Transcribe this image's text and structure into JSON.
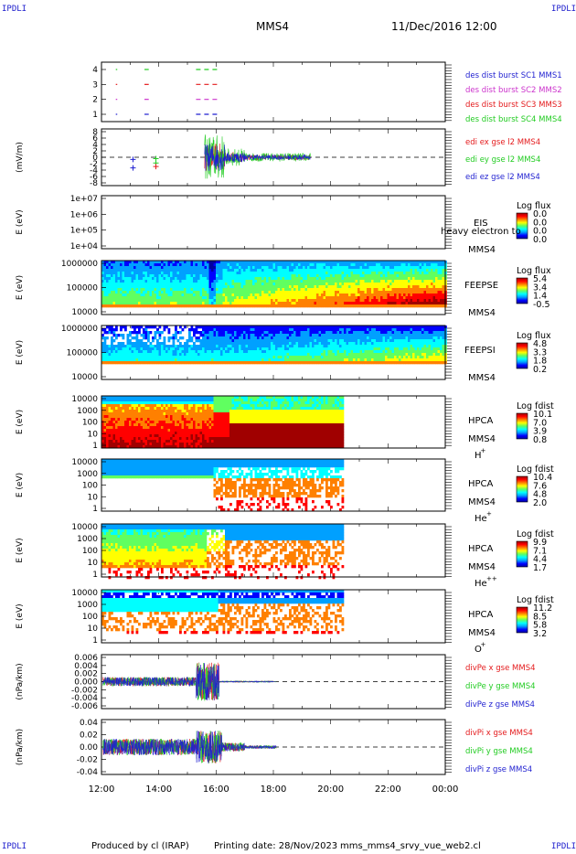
{
  "header": {
    "corner_label": "IPDLI",
    "spacecraft": "MMS4",
    "datetime": "11/Dec/2016 12:00"
  },
  "footer": {
    "produced_by": "Produced by cl (IRAP)",
    "printing_date": "Printing date: 28/Nov/2023",
    "script_name": "mms_mms4_srvy_vue_web2.cl"
  },
  "colors": {
    "red": "#e41a1c",
    "green": "#22cc22",
    "blue": "#1f1fd0",
    "magenta": "#cc33cc",
    "colorbar": [
      "#0000a0",
      "#0000ff",
      "#00a0ff",
      "#00ffff",
      "#60ff60",
      "#ffff00",
      "#ff8000",
      "#ff0000",
      "#a00000"
    ]
  },
  "chart_data": [
    {
      "type": "scatter",
      "ylabel": "",
      "yticks": [
        "1",
        "2",
        "3",
        "4"
      ],
      "legend": [
        {
          "label": "des dist burst SC1 MMS1",
          "color": "#1f1fd0"
        },
        {
          "label": "des dist burst SC2 MMS2",
          "color": "#cc33cc"
        },
        {
          "label": "des dist burst SC3 MMS3",
          "color": "#e41a1c"
        },
        {
          "label": "des dist burst SC4 MMS4",
          "color": "#22cc22"
        }
      ],
      "segments": [
        {
          "sc": 4,
          "start": 12.5,
          "end": 12.55
        },
        {
          "sc": 4,
          "start": 13.5,
          "end": 13.65
        },
        {
          "sc": 4,
          "start": 15.3,
          "end": 16.1
        },
        {
          "sc": 3,
          "start": 12.5,
          "end": 12.55
        },
        {
          "sc": 3,
          "start": 13.5,
          "end": 13.65
        },
        {
          "sc": 3,
          "start": 15.3,
          "end": 16.1
        },
        {
          "sc": 2,
          "start": 12.5,
          "end": 12.55
        },
        {
          "sc": 2,
          "start": 13.5,
          "end": 13.65
        },
        {
          "sc": 2,
          "start": 15.3,
          "end": 16.1
        },
        {
          "sc": 1,
          "start": 12.5,
          "end": 12.55
        },
        {
          "sc": 1,
          "start": 13.5,
          "end": 13.65
        },
        {
          "sc": 1,
          "start": 15.3,
          "end": 16.1
        }
      ]
    },
    {
      "type": "line",
      "ylabel": "(mV/m)",
      "yticks": [
        "8",
        "6",
        "4",
        "2",
        "0",
        "-2",
        "-4",
        "-6",
        "-8"
      ],
      "ylim": [
        -8,
        8
      ],
      "legend": [
        {
          "label": "edi ex gse l2 MMS4",
          "color": "#e41a1c"
        },
        {
          "label": "edi ey gse l2 MMS4",
          "color": "#22cc22"
        },
        {
          "label": "edi ez gse l2 MMS4",
          "color": "#1f1fd0"
        }
      ]
    },
    {
      "type": "heatmap",
      "ylabel": "E (eV)",
      "yticks": [
        "1e+07",
        "1e+06",
        "1e+05",
        "1e+04"
      ],
      "instrument": "EIS",
      "sc_label": "MMS4",
      "overlay_text": "heavy electron to",
      "colorbar_title": "Log flux",
      "colorbar_ticks": [
        "0.0",
        "0.0",
        "0.0",
        "0.0"
      ]
    },
    {
      "type": "heatmap",
      "ylabel": "E (eV)",
      "yticks": [
        "1000000",
        "100000",
        "10000"
      ],
      "instrument": "FEEPSE",
      "sc_label": "MMS4",
      "colorbar_title": "Log flux",
      "colorbar_ticks": [
        "5.4",
        "3.4",
        "1.4",
        "-0.5"
      ]
    },
    {
      "type": "heatmap",
      "ylabel": "E (eV)",
      "yticks": [
        "1000000",
        "100000",
        "10000"
      ],
      "instrument": "FEEPSI",
      "sc_label": "MMS4",
      "colorbar_title": "Log flux",
      "colorbar_ticks": [
        "4.8",
        "3.3",
        "1.8",
        "0.2"
      ]
    },
    {
      "type": "heatmap",
      "ylabel": "E (eV)",
      "yticks": [
        "10000",
        "1000",
        "100",
        "10",
        "1"
      ],
      "instrument": "HPCA",
      "sc_label": "MMS4",
      "species": "H",
      "species_sup": "+",
      "colorbar_title": "Log fdist",
      "colorbar_ticks": [
        "10.1",
        "7.0",
        "3.9",
        "0.8"
      ]
    },
    {
      "type": "heatmap",
      "ylabel": "E (eV)",
      "yticks": [
        "10000",
        "1000",
        "100",
        "10",
        "1"
      ],
      "instrument": "HPCA",
      "sc_label": "MMS4",
      "species": "He",
      "species_sup": "+",
      "colorbar_title": "Log fdist",
      "colorbar_ticks": [
        "10.4",
        "7.6",
        "4.8",
        "2.0"
      ]
    },
    {
      "type": "heatmap",
      "ylabel": "E (eV)",
      "yticks": [
        "10000",
        "1000",
        "100",
        "10",
        "1"
      ],
      "instrument": "HPCA",
      "sc_label": "MMS4",
      "species": "He",
      "species_sup": "++",
      "colorbar_title": "Log fdist",
      "colorbar_ticks": [
        "9.9",
        "7.1",
        "4.4",
        "1.7"
      ]
    },
    {
      "type": "heatmap",
      "ylabel": "E (eV)",
      "yticks": [
        "10000",
        "1000",
        "100",
        "10",
        "1"
      ],
      "instrument": "HPCA",
      "sc_label": "MMS4",
      "species": "O",
      "species_sup": "+",
      "colorbar_title": "Log fdist",
      "colorbar_ticks": [
        "11.2",
        "8.5",
        "5.8",
        "3.2"
      ]
    },
    {
      "type": "line",
      "ylabel": "(nPa/km)",
      "yticks": [
        "0.006",
        "0.004",
        "0.002",
        "0.000",
        "-0.002",
        "-0.004",
        "-0.006"
      ],
      "ylim": [
        -0.007,
        0.007
      ],
      "legend": [
        {
          "label": "divPe x gse MMS4",
          "color": "#e41a1c"
        },
        {
          "label": "divPe y gse MMS4",
          "color": "#22cc22"
        },
        {
          "label": "divPe z gse MMS4",
          "color": "#1f1fd0"
        }
      ]
    },
    {
      "type": "line",
      "ylabel": "(nPa/km)",
      "yticks": [
        "0.04",
        "0.02",
        "0.00",
        "-0.02",
        "-0.04"
      ],
      "ylim": [
        -0.05,
        0.05
      ],
      "legend": [
        {
          "label": "divPi x gse MMS4",
          "color": "#e41a1c"
        },
        {
          "label": "divPi y gse MMS4",
          "color": "#22cc22"
        },
        {
          "label": "divPi z gse MMS4",
          "color": "#1f1fd0"
        }
      ]
    }
  ],
  "time_axis": {
    "labels": [
      "12:00",
      "14:00",
      "16:00",
      "18:00",
      "20:00",
      "22:00",
      "00:00"
    ],
    "start_hour": 12,
    "end_hour": 24
  }
}
